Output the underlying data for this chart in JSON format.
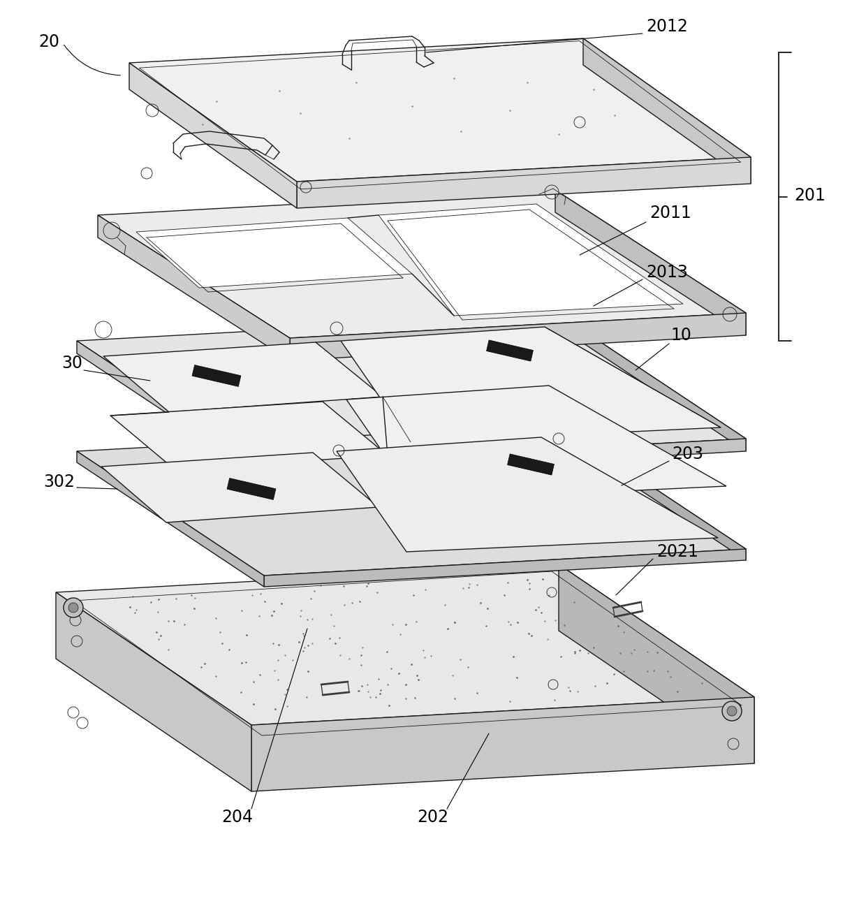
{
  "background_color": "#ffffff",
  "line_color": "#1a1a1a",
  "fill_top": "#f2f2f2",
  "fill_side_r": "#d0d0d0",
  "fill_side_l": "#d8d8d8",
  "fill_bottom": "#e0e0e0",
  "fill_white": "#ffffff",
  "fill_frame": "#eeeeee",
  "fill_panel": "#f8f8f8",
  "lw": 1.0,
  "tlw": 0.6,
  "label_fs": 17,
  "figsize": [
    12.4,
    13.1
  ],
  "dpi": 100
}
